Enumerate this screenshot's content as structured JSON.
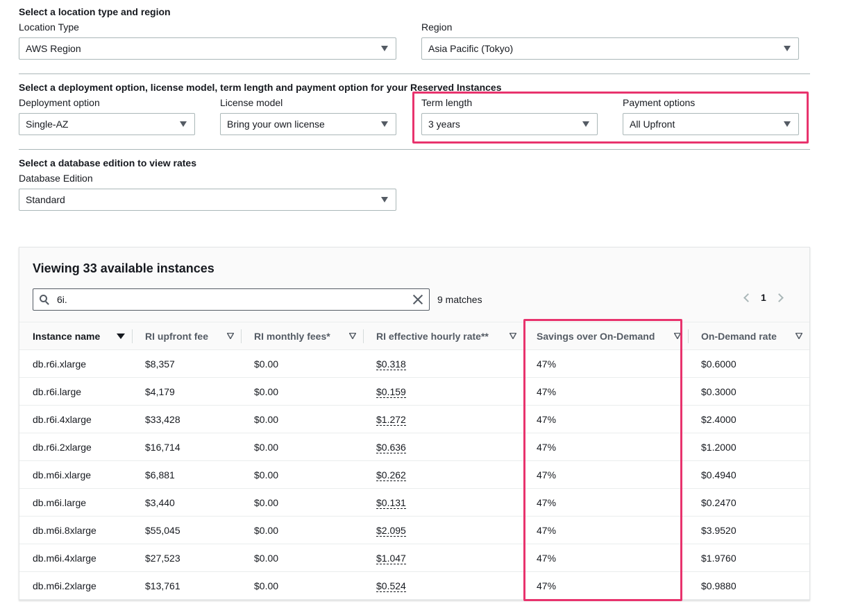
{
  "location_section": {
    "title": "Select a location type and region",
    "location_type_label": "Location Type",
    "location_type_value": "AWS Region",
    "region_label": "Region",
    "region_value": "Asia Pacific (Tokyo)"
  },
  "deployment_section": {
    "title": "Select a deployment option, license model, term length and payment option for your Reserved Instances",
    "deployment_label": "Deployment option",
    "deployment_value": "Single-AZ",
    "license_label": "License model",
    "license_value": "Bring your own license",
    "term_label": "Term length",
    "term_value": "3 years",
    "payment_label": "Payment options",
    "payment_value": "All Upfront"
  },
  "edition_section": {
    "title": "Select a database edition to view rates",
    "edition_label": "Database Edition",
    "edition_value": "Standard"
  },
  "instances": {
    "title": "Viewing 33 available instances",
    "search_value": "6i.",
    "matches": "9 matches",
    "page": "1",
    "columns": [
      "Instance name",
      "RI upfront fee",
      "RI monthly fees*",
      "RI effective hourly rate**",
      "Savings over On-Demand",
      "On-Demand rate"
    ],
    "rows": [
      [
        "db.r6i.xlarge",
        "$8,357",
        "$0.00",
        "$0.318",
        "47%",
        "$0.6000"
      ],
      [
        "db.r6i.large",
        "$4,179",
        "$0.00",
        "$0.159",
        "47%",
        "$0.3000"
      ],
      [
        "db.r6i.4xlarge",
        "$33,428",
        "$0.00",
        "$1.272",
        "47%",
        "$2.4000"
      ],
      [
        "db.r6i.2xlarge",
        "$16,714",
        "$0.00",
        "$0.636",
        "47%",
        "$1.2000"
      ],
      [
        "db.m6i.xlarge",
        "$6,881",
        "$0.00",
        "$0.262",
        "47%",
        "$0.4940"
      ],
      [
        "db.m6i.large",
        "$3,440",
        "$0.00",
        "$0.131",
        "47%",
        "$0.2470"
      ],
      [
        "db.m6i.8xlarge",
        "$55,045",
        "$0.00",
        "$2.095",
        "47%",
        "$3.9520"
      ],
      [
        "db.m6i.4xlarge",
        "$27,523",
        "$0.00",
        "$1.047",
        "47%",
        "$1.9760"
      ],
      [
        "db.m6i.2xlarge",
        "$13,761",
        "$0.00",
        "$0.524",
        "47%",
        "$0.9880"
      ]
    ]
  },
  "colors": {
    "highlight": "#e8336d",
    "text": "#16191f",
    "border": "#aab7b8"
  }
}
